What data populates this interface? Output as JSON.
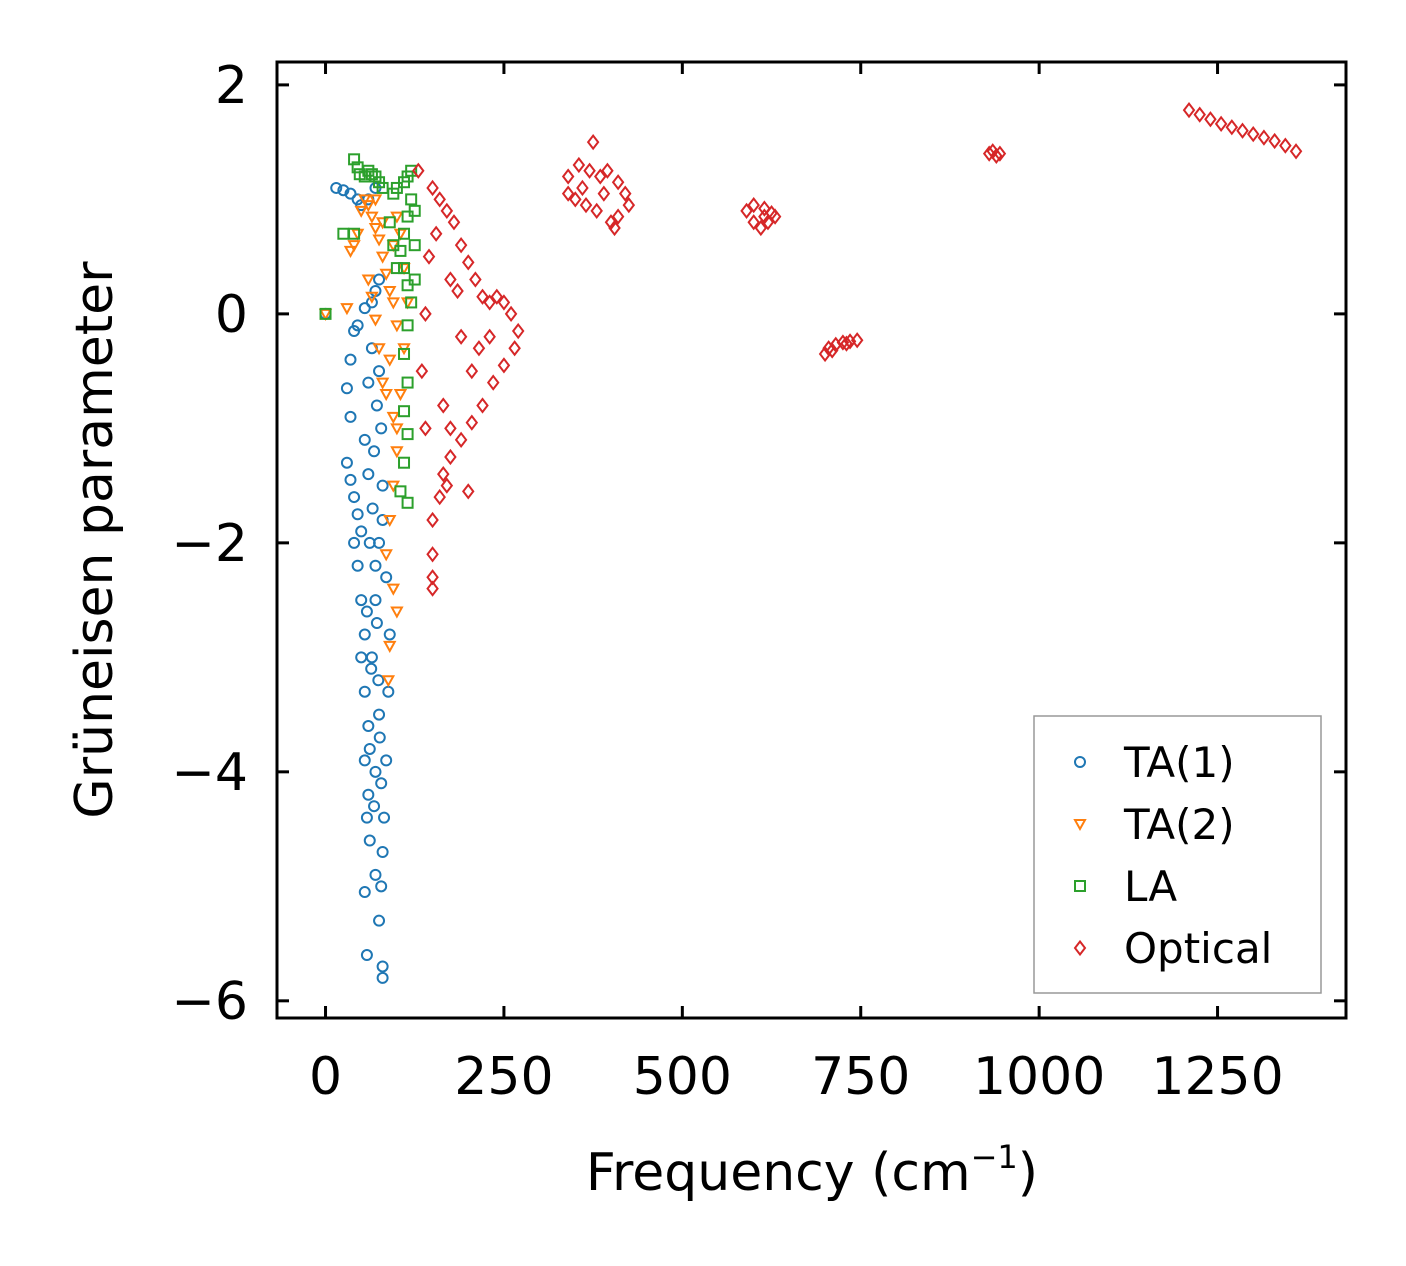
{
  "chart_data": {
    "type": "scatter",
    "xlabel": "Frequency (cm",
    "xlabel_sup": "−1",
    "xlabel_close": ")",
    "ylabel": "Grüneisen parameter",
    "xlim": [
      -68,
      1430
    ],
    "ylim": [
      -6.15,
      2.2
    ],
    "xticks": [
      0,
      250,
      500,
      750,
      1000,
      1250
    ],
    "xtick_labels": [
      "0",
      "250",
      "500",
      "750",
      "1000",
      "1250"
    ],
    "yticks": [
      2,
      0,
      -2,
      -4,
      -6
    ],
    "ytick_labels": [
      "2",
      "0",
      "−2",
      "−4",
      "−6"
    ],
    "legend_position": "lower-right",
    "series": [
      {
        "name": "TA(1)",
        "marker": "circle",
        "color": "#1f77b4",
        "points": [
          [
            0,
            0
          ],
          [
            15,
            1.1
          ],
          [
            25,
            1.08
          ],
          [
            35,
            1.05
          ],
          [
            45,
            1.0
          ],
          [
            50,
            0.95
          ],
          [
            60,
            1.0
          ],
          [
            70,
            1.1
          ],
          [
            30,
            -0.65
          ],
          [
            35,
            -0.4
          ],
          [
            40,
            -0.15
          ],
          [
            45,
            -0.1
          ],
          [
            55,
            0.05
          ],
          [
            65,
            0.1
          ],
          [
            70,
            0.2
          ],
          [
            75,
            0.3
          ],
          [
            35,
            -0.9
          ],
          [
            30,
            -1.3
          ],
          [
            35,
            -1.45
          ],
          [
            40,
            -1.6
          ],
          [
            45,
            -1.75
          ],
          [
            50,
            -1.9
          ],
          [
            40,
            -2.0
          ],
          [
            45,
            -2.2
          ],
          [
            50,
            -2.5
          ],
          [
            55,
            -2.8
          ],
          [
            50,
            -3.0
          ],
          [
            55,
            -3.3
          ],
          [
            60,
            -3.6
          ],
          [
            55,
            -3.9
          ],
          [
            60,
            -4.2
          ],
          [
            58,
            -4.4
          ],
          [
            62,
            -4.6
          ],
          [
            55,
            -5.05
          ],
          [
            75,
            -5.3
          ],
          [
            78,
            -5.0
          ],
          [
            80,
            -4.7
          ],
          [
            70,
            -4.9
          ],
          [
            58,
            -5.6
          ],
          [
            80,
            -5.7
          ],
          [
            80,
            -5.8
          ],
          [
            70,
            -4.0
          ],
          [
            75,
            -3.5
          ],
          [
            65,
            -3.0
          ],
          [
            70,
            -2.5
          ],
          [
            75,
            -2.0
          ],
          [
            80,
            -1.5
          ],
          [
            78,
            -1.0
          ],
          [
            75,
            -0.5
          ],
          [
            72,
            -0.8
          ],
          [
            68,
            -1.2
          ],
          [
            66,
            -1.7
          ],
          [
            70,
            -2.2
          ],
          [
            72,
            -2.7
          ],
          [
            74,
            -3.2
          ],
          [
            76,
            -3.7
          ],
          [
            78,
            -4.1
          ],
          [
            82,
            -4.4
          ],
          [
            85,
            -3.9
          ],
          [
            88,
            -3.3
          ],
          [
            90,
            -2.8
          ],
          [
            85,
            -2.3
          ],
          [
            80,
            -1.8
          ],
          [
            65,
            -0.3
          ],
          [
            60,
            -0.6
          ],
          [
            55,
            -1.1
          ],
          [
            60,
            -1.4
          ],
          [
            62,
            -2.0
          ],
          [
            58,
            -2.6
          ],
          [
            64,
            -3.1
          ],
          [
            62,
            -3.8
          ],
          [
            68,
            -4.3
          ]
        ]
      },
      {
        "name": "TA(2)",
        "marker": "triangle-down",
        "color": "#ff7f0e",
        "points": [
          [
            0,
            0
          ],
          [
            30,
            0.05
          ],
          [
            35,
            0.55
          ],
          [
            40,
            0.6
          ],
          [
            45,
            0.7
          ],
          [
            50,
            0.9
          ],
          [
            55,
            1.0
          ],
          [
            60,
            0.95
          ],
          [
            65,
            0.85
          ],
          [
            70,
            0.75
          ],
          [
            75,
            0.65
          ],
          [
            80,
            0.5
          ],
          [
            85,
            0.35
          ],
          [
            90,
            0.2
          ],
          [
            95,
            0.1
          ],
          [
            100,
            -0.1
          ],
          [
            90,
            -0.4
          ],
          [
            85,
            -0.7
          ],
          [
            95,
            -0.9
          ],
          [
            100,
            -1.2
          ],
          [
            95,
            -1.5
          ],
          [
            90,
            -1.8
          ],
          [
            85,
            -2.1
          ],
          [
            95,
            -2.4
          ],
          [
            100,
            -2.6
          ],
          [
            90,
            -2.9
          ],
          [
            88,
            -3.2
          ],
          [
            60,
            0.3
          ],
          [
            65,
            0.15
          ],
          [
            70,
            -0.05
          ],
          [
            75,
            -0.3
          ],
          [
            80,
            -0.6
          ],
          [
            110,
            0.4
          ],
          [
            105,
            0.7
          ],
          [
            100,
            0.85
          ],
          [
            95,
            0.6
          ],
          [
            115,
            0.1
          ],
          [
            110,
            -0.3
          ],
          [
            105,
            -0.7
          ],
          [
            100,
            -1.0
          ],
          [
            70,
            1.0
          ],
          [
            80,
            0.8
          ]
        ]
      },
      {
        "name": "LA",
        "marker": "square",
        "color": "#2ca02c",
        "points": [
          [
            0,
            0
          ],
          [
            25,
            0.7
          ],
          [
            40,
            0.7
          ],
          [
            40,
            1.35
          ],
          [
            45,
            1.28
          ],
          [
            48,
            1.22
          ],
          [
            55,
            1.2
          ],
          [
            60,
            1.25
          ],
          [
            65,
            1.22
          ],
          [
            70,
            1.2
          ],
          [
            75,
            1.15
          ],
          [
            80,
            1.1
          ],
          [
            95,
            1.05
          ],
          [
            100,
            1.1
          ],
          [
            110,
            1.15
          ],
          [
            115,
            1.2
          ],
          [
            120,
            1.25
          ],
          [
            120,
            1.0
          ],
          [
            115,
            0.85
          ],
          [
            110,
            0.7
          ],
          [
            105,
            0.55
          ],
          [
            110,
            0.4
          ],
          [
            115,
            0.25
          ],
          [
            120,
            0.1
          ],
          [
            115,
            -0.1
          ],
          [
            110,
            -0.35
          ],
          [
            115,
            -0.6
          ],
          [
            110,
            -0.85
          ],
          [
            115,
            -1.05
          ],
          [
            110,
            -1.3
          ],
          [
            105,
            -1.55
          ],
          [
            115,
            -1.65
          ],
          [
            125,
            0.9
          ],
          [
            125,
            0.6
          ],
          [
            125,
            0.3
          ],
          [
            90,
            0.8
          ],
          [
            95,
            0.6
          ],
          [
            100,
            0.4
          ]
        ]
      },
      {
        "name": "Optical",
        "marker": "diamond",
        "color": "#d62728",
        "points": [
          [
            130,
            1.25
          ],
          [
            150,
            1.1
          ],
          [
            160,
            1.0
          ],
          [
            170,
            0.9
          ],
          [
            180,
            0.8
          ],
          [
            190,
            0.6
          ],
          [
            200,
            0.45
          ],
          [
            210,
            0.3
          ],
          [
            220,
            0.15
          ],
          [
            230,
            0.1
          ],
          [
            240,
            0.15
          ],
          [
            250,
            0.1
          ],
          [
            260,
            0.0
          ],
          [
            270,
            -0.15
          ],
          [
            265,
            -0.3
          ],
          [
            250,
            -0.45
          ],
          [
            235,
            -0.6
          ],
          [
            220,
            -0.8
          ],
          [
            205,
            -0.95
          ],
          [
            190,
            -1.1
          ],
          [
            175,
            -1.25
          ],
          [
            165,
            -1.4
          ],
          [
            160,
            -1.6
          ],
          [
            150,
            -1.8
          ],
          [
            150,
            -2.1
          ],
          [
            150,
            -2.3
          ],
          [
            150,
            -2.4
          ],
          [
            200,
            -1.55
          ],
          [
            170,
            -1.5
          ],
          [
            140,
            -1.0
          ],
          [
            135,
            -0.5
          ],
          [
            140,
            0.0
          ],
          [
            145,
            0.5
          ],
          [
            155,
            0.7
          ],
          [
            175,
            0.3
          ],
          [
            190,
            -0.2
          ],
          [
            205,
            -0.5
          ],
          [
            215,
            -0.3
          ],
          [
            185,
            0.2
          ],
          [
            165,
            -0.8
          ],
          [
            175,
            -1.0
          ],
          [
            230,
            -0.2
          ],
          [
            340,
            1.2
          ],
          [
            355,
            1.3
          ],
          [
            370,
            1.25
          ],
          [
            385,
            1.2
          ],
          [
            395,
            1.25
          ],
          [
            410,
            1.15
          ],
          [
            420,
            1.05
          ],
          [
            425,
            0.95
          ],
          [
            410,
            0.85
          ],
          [
            400,
            0.8
          ],
          [
            380,
            0.9
          ],
          [
            365,
            0.95
          ],
          [
            350,
            1.0
          ],
          [
            340,
            1.05
          ],
          [
            375,
            1.5
          ],
          [
            360,
            1.1
          ],
          [
            390,
            1.05
          ],
          [
            405,
            0.75
          ],
          [
            590,
            0.9
          ],
          [
            600,
            0.95
          ],
          [
            615,
            0.92
          ],
          [
            625,
            0.88
          ],
          [
            630,
            0.85
          ],
          [
            620,
            0.8
          ],
          [
            610,
            0.75
          ],
          [
            600,
            0.8
          ],
          [
            615,
            0.85
          ],
          [
            700,
            -0.35
          ],
          [
            705,
            -0.3
          ],
          [
            715,
            -0.27
          ],
          [
            725,
            -0.25
          ],
          [
            735,
            -0.24
          ],
          [
            745,
            -0.23
          ],
          [
            710,
            -0.32
          ],
          [
            730,
            -0.26
          ],
          [
            930,
            1.4
          ],
          [
            935,
            1.42
          ],
          [
            940,
            1.38
          ],
          [
            945,
            1.4
          ],
          [
            1210,
            1.78
          ],
          [
            1225,
            1.74
          ],
          [
            1240,
            1.7
          ],
          [
            1255,
            1.66
          ],
          [
            1270,
            1.63
          ],
          [
            1285,
            1.6
          ],
          [
            1300,
            1.57
          ],
          [
            1315,
            1.54
          ],
          [
            1330,
            1.51
          ],
          [
            1345,
            1.47
          ],
          [
            1360,
            1.42
          ]
        ]
      }
    ]
  }
}
